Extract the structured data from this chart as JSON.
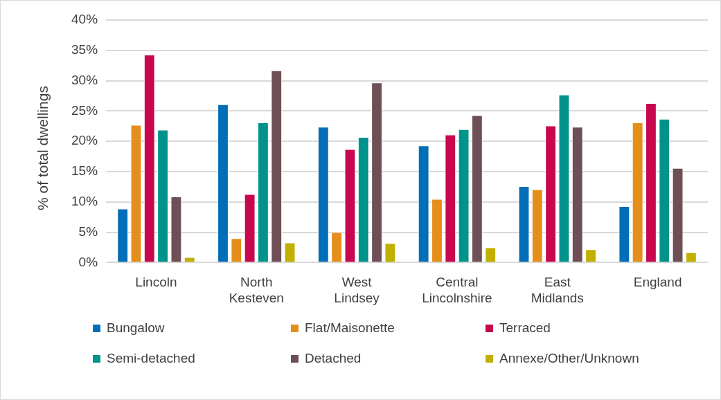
{
  "chart_data": {
    "type": "bar",
    "ylabel": "% of total dwellings",
    "categories": [
      "Lincoln",
      "North Kesteven",
      "West Lindsey",
      "Central Lincolnshire",
      "East Midlands",
      "England"
    ],
    "series": [
      {
        "name": "Bungalow",
        "color": "#036eb8",
        "values": [
          8.9,
          26.1,
          22.4,
          19.3,
          12.6,
          9.3
        ]
      },
      {
        "name": "Flat/Maisonette",
        "color": "#e58e1a",
        "values": [
          22.7,
          4.0,
          5.0,
          10.5,
          12.1,
          23.1
        ]
      },
      {
        "name": "Terraced",
        "color": "#c8074f",
        "values": [
          34.3,
          11.3,
          18.7,
          21.1,
          22.6,
          26.3
        ]
      },
      {
        "name": "Semi-detached",
        "color": "#00938c",
        "values": [
          21.9,
          23.1,
          20.7,
          22.0,
          27.7,
          23.7
        ]
      },
      {
        "name": "Detached",
        "color": "#6d4f55",
        "values": [
          10.9,
          31.7,
          29.7,
          24.3,
          22.4,
          15.6
        ]
      },
      {
        "name": "Annexe/Other/Unknown",
        "color": "#c2b000",
        "values": [
          0.9,
          3.3,
          3.2,
          2.5,
          2.2,
          1.7
        ]
      }
    ],
    "ylim": [
      0,
      40
    ],
    "yticks": [
      {
        "value": 0,
        "label": "0%"
      },
      {
        "value": 5,
        "label": "5%"
      },
      {
        "value": 10,
        "label": "10%"
      },
      {
        "value": 15,
        "label": "15%"
      },
      {
        "value": 20,
        "label": "20%"
      },
      {
        "value": 25,
        "label": "25%"
      },
      {
        "value": 30,
        "label": "30%"
      },
      {
        "value": 35,
        "label": "35%"
      },
      {
        "value": 40,
        "label": "40%"
      }
    ],
    "grid": "y",
    "legend": "bottom"
  }
}
